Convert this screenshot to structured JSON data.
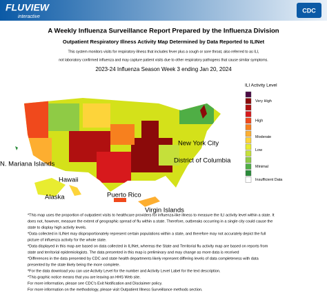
{
  "header": {
    "logo_main": "FLUVIEW",
    "logo_sub": "interactive",
    "agency": "CDC"
  },
  "title": "A Weekly Influenza Surveillance Report Prepared by the Influenza Division",
  "subtitle": "Outpatient Respiratory Illness Activity Map Determined by Data Reported to ILINet",
  "description": [
    "This system monitors visits for respiratory illness that includes fever plus a cough or sore throat, also referred to as ILI,",
    "not laboratory confirmed influenza and may capture patient visits due to other respiratory pathogens that cause similar symptoms."
  ],
  "season": "2023-24 Influenza Season Week 3 ending Jan 20, 2024",
  "legend": {
    "title": "ILI Activity Level",
    "levels": [
      {
        "label": "Very High",
        "colors": [
          "#4a0a44",
          "#8b0a0a",
          "#b01010"
        ]
      },
      {
        "label": "High",
        "colors": [
          "#d7191c",
          "#f0491c",
          "#f7801e"
        ]
      },
      {
        "label": "Moderate",
        "colors": [
          "#fdae30",
          "#fdd43a"
        ]
      },
      {
        "label": "Low",
        "colors": [
          "#e8ec30",
          "#c5e03a"
        ]
      },
      {
        "label": "Minimal",
        "colors": [
          "#8fcb45",
          "#4fae45",
          "#2a8b3a"
        ]
      },
      {
        "label": "Insufficient Data",
        "colors": [
          "#ffffff"
        ]
      }
    ]
  },
  "map_labels": [
    "New York City",
    "N. Mariana Islands",
    "District of Columbia",
    "Hawaii",
    "Puerto Rico",
    "Alaska",
    "Virgin Islands"
  ],
  "footnotes": [
    "*This map uses the proportion of outpatient visits to healthcare providers for influenza-like illness to measure the ILI activity level within a state. It",
    "does not, however, measure the extent of geographic spread of flu within a state. Therefore, outbreaks occurring in a single city could cause the",
    "state to display high activity levels.",
    "*Data collected in ILINet may disproportionately represent certain populations within a state, and therefore may not accurately depict the full",
    "picture of influenza activity for the whole state.",
    "*Data displayed in this map are based on data collected in ILINet, whereas the State and Territorial flu activity map are based on reports from",
    "state and territorial epidemiologists. The data presented in this map is preliminary and may change as more data is received",
    "*Differences in the data presented by CDC and state health departments likely represent differing levels of data completeness with data",
    "presented by the state likely being the more complete.",
    "*For the data download you can use Activity Level for the number and Activity Level Label for the text description.",
    "*This graphic notice means that you are leaving an HHS Web site.",
    "For more information, please see CDC's Exit Notification and Disclaimer policy.",
    "For more information on the methodology, please visit Outpatient Illness Surveillance methods section."
  ]
}
